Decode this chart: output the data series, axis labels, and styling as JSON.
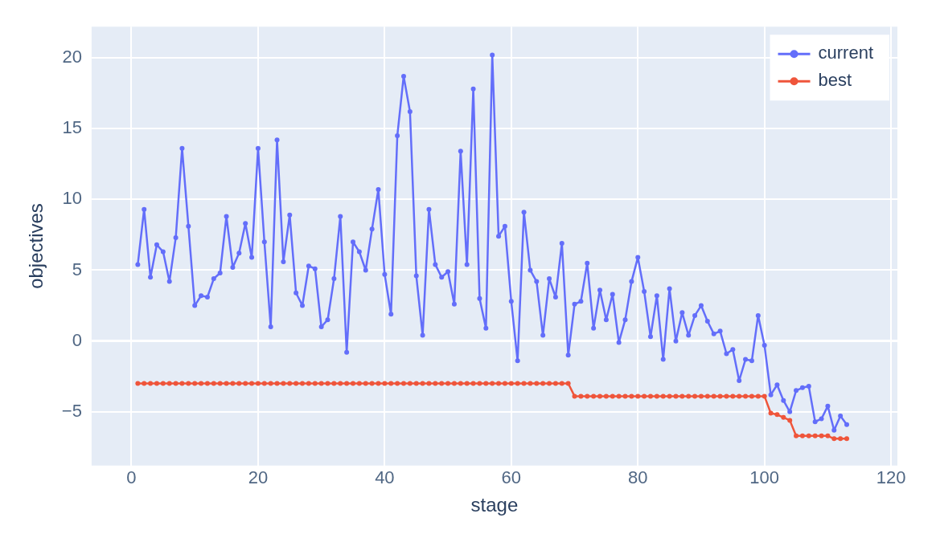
{
  "chart_data": {
    "type": "line",
    "xlabel": "stage",
    "ylabel": "objectives",
    "x": [
      1,
      2,
      3,
      4,
      5,
      6,
      7,
      8,
      9,
      10,
      11,
      12,
      13,
      14,
      15,
      16,
      17,
      18,
      19,
      20,
      21,
      22,
      23,
      24,
      25,
      26,
      27,
      28,
      29,
      30,
      31,
      32,
      33,
      34,
      35,
      36,
      37,
      38,
      39,
      40,
      41,
      42,
      43,
      44,
      45,
      46,
      47,
      48,
      49,
      50,
      51,
      52,
      53,
      54,
      55,
      56,
      57,
      58,
      59,
      60,
      61,
      62,
      63,
      64,
      65,
      66,
      67,
      68,
      69,
      70,
      71,
      72,
      73,
      74,
      75,
      76,
      77,
      78,
      79,
      80,
      81,
      82,
      83,
      84,
      85,
      86,
      87,
      88,
      89,
      90,
      91,
      92,
      93,
      94,
      95,
      96,
      97,
      98,
      99,
      100,
      101,
      102,
      103,
      104,
      105,
      106,
      107,
      108,
      109,
      110,
      111,
      112,
      113
    ],
    "series": [
      {
        "name": "current",
        "color": "#636efa",
        "values": [
          5.4,
          9.3,
          4.5,
          6.8,
          6.3,
          4.2,
          7.3,
          13.6,
          8.1,
          2.5,
          3.2,
          3.1,
          4.4,
          4.8,
          8.8,
          5.2,
          6.2,
          8.3,
          5.9,
          13.6,
          7.0,
          1.0,
          14.2,
          5.6,
          8.9,
          3.4,
          2.5,
          5.3,
          5.1,
          1.0,
          1.5,
          4.4,
          8.8,
          -0.8,
          7.0,
          6.3,
          5.0,
          7.9,
          10.7,
          4.7,
          1.9,
          14.5,
          18.7,
          16.2,
          4.6,
          0.4,
          9.3,
          5.4,
          4.5,
          4.9,
          2.6,
          13.4,
          5.4,
          17.8,
          3.0,
          0.9,
          20.2,
          7.4,
          8.1,
          2.8,
          -1.4,
          9.1,
          5.0,
          4.2,
          0.4,
          4.4,
          3.1,
          6.9,
          -1.0,
          2.6,
          2.8,
          5.5,
          0.9,
          3.6,
          1.5,
          3.3,
          -0.1,
          1.5,
          4.2,
          5.9,
          3.5,
          0.3,
          3.2,
          -1.3,
          3.7,
          0.0,
          2.0,
          0.4,
          1.8,
          2.5,
          1.4,
          0.5,
          0.7,
          -0.9,
          -0.6,
          -2.8,
          -1.3,
          -1.4,
          1.8,
          -0.3,
          -3.8,
          -3.1,
          -4.2,
          -5.0,
          -3.5,
          -3.3,
          -3.2,
          -5.7,
          -5.5,
          -4.6,
          -6.3,
          -5.3,
          -5.9
        ]
      },
      {
        "name": "best",
        "color": "#ef553b",
        "values": [
          -3,
          -3,
          -3,
          -3,
          -3,
          -3,
          -3,
          -3,
          -3,
          -3,
          -3,
          -3,
          -3,
          -3,
          -3,
          -3,
          -3,
          -3,
          -3,
          -3,
          -3,
          -3,
          -3,
          -3,
          -3,
          -3,
          -3,
          -3,
          -3,
          -3,
          -3,
          -3,
          -3,
          -3,
          -3,
          -3,
          -3,
          -3,
          -3,
          -3,
          -3,
          -3,
          -3,
          -3,
          -3,
          -3,
          -3,
          -3,
          -3,
          -3,
          -3,
          -3,
          -3,
          -3,
          -3,
          -3,
          -3,
          -3,
          -3,
          -3,
          -3,
          -3,
          -3,
          -3,
          -3,
          -3,
          -3,
          -3,
          -3,
          -3.9,
          -3.9,
          -3.9,
          -3.9,
          -3.9,
          -3.9,
          -3.9,
          -3.9,
          -3.9,
          -3.9,
          -3.9,
          -3.9,
          -3.9,
          -3.9,
          -3.9,
          -3.9,
          -3.9,
          -3.9,
          -3.9,
          -3.9,
          -3.9,
          -3.9,
          -3.9,
          -3.9,
          -3.9,
          -3.9,
          -3.9,
          -3.9,
          -3.9,
          -3.9,
          -3.9,
          -5.1,
          -5.2,
          -5.4,
          -5.6,
          -6.7,
          -6.7,
          -6.7,
          -6.7,
          -6.7,
          -6.7,
          -6.9,
          -6.9,
          -6.9
        ]
      }
    ],
    "xlim": [
      -6.3,
      121
    ],
    "xticks": [
      0,
      20,
      40,
      60,
      80,
      100,
      120
    ],
    "ylim": [
      -8.8,
      22.2
    ],
    "yticks": [
      {
        "value": -5,
        "label": "−5"
      },
      0,
      5,
      10,
      15,
      20
    ],
    "grid": true,
    "legend": "top right",
    "marker": "circle",
    "line_style": "solid"
  }
}
